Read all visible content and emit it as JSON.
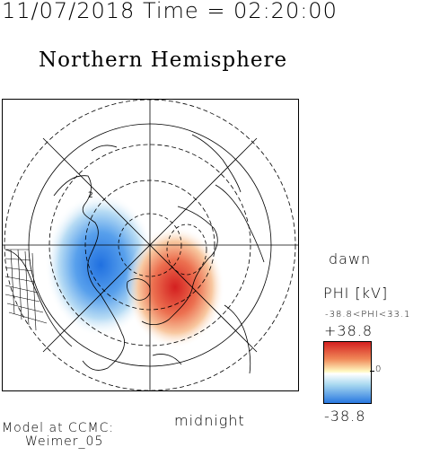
{
  "header": {
    "timestamp": "11/07/2018 Time = 02:20:00"
  },
  "map": {
    "title": "Northern Hemisphere",
    "projection": "polar",
    "labels": {
      "dawn": "dawn",
      "midnight": "midnight"
    },
    "grid_label": "2"
  },
  "colorbar": {
    "title": "PHI [kV]",
    "range_text": "-38.8<PHI<33.1",
    "max_label": "+38.8",
    "min_label": "-38.8",
    "zero_label": "0",
    "colors": {
      "high": "#d42020",
      "mid": "#ffffff",
      "low": "#2878e0"
    }
  },
  "footer": {
    "line1": "Model at CCMC:",
    "line2": "Weimer_05"
  }
}
